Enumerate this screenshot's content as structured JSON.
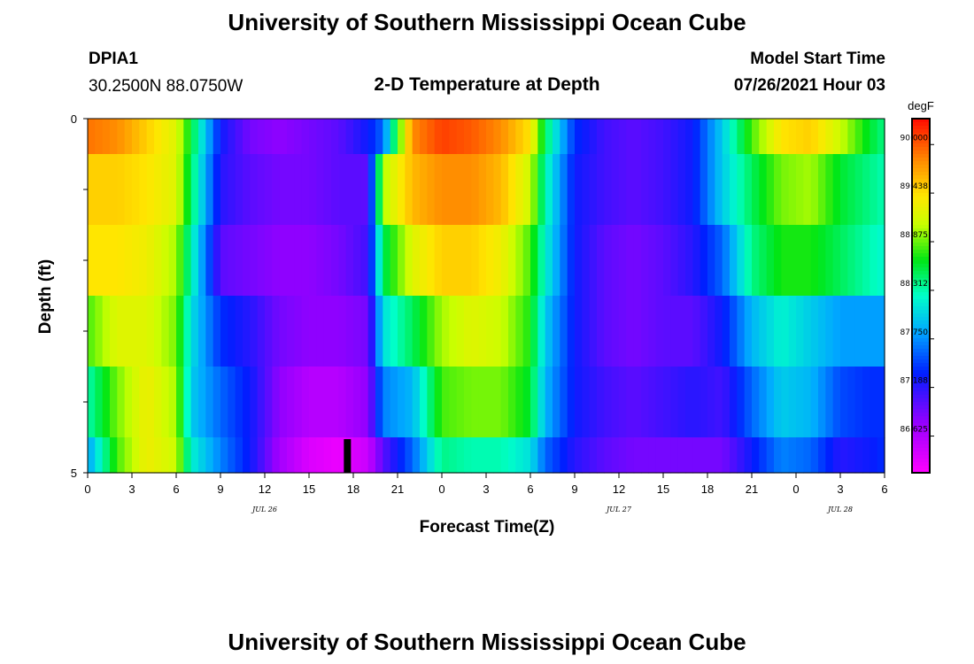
{
  "header": {
    "title_top": "University of Southern Mississippi Ocean Cube",
    "title_bottom": "University of Southern Mississippi Ocean Cube",
    "station_id": "DPIA1",
    "station_coords": "30.2500N  88.0750W",
    "plot_title": "2-D Temperature at Depth",
    "model_start_label": "Model Start Time",
    "model_start_value": "07/26/2021 Hour 03"
  },
  "colors": {
    "marker": "#000000",
    "axis": "#000000"
  },
  "chart_data": {
    "type": "heatmap",
    "title": "2-D Temperature at Depth",
    "xlabel": "Forecast Time(Z)",
    "ylabel": "Depth (ft)",
    "x_unit": "hours since 07/26/2021 00Z",
    "xlim": [
      0,
      54
    ],
    "ylim": [
      0,
      5
    ],
    "x_tick_labels": [
      "0",
      "3",
      "6",
      "9",
      "12",
      "15",
      "18",
      "21",
      "0",
      "3",
      "6",
      "9",
      "12",
      "15",
      "18",
      "21",
      "0",
      "3",
      "6"
    ],
    "x_tick_hours": [
      0,
      3,
      6,
      9,
      12,
      15,
      18,
      21,
      24,
      27,
      30,
      33,
      36,
      39,
      42,
      45,
      48,
      51,
      54
    ],
    "y_tick_labels": [
      "0",
      "5"
    ],
    "y_tick_values": [
      0,
      5
    ],
    "date_labels": [
      {
        "hour": 12,
        "text": "JUL 26"
      },
      {
        "hour": 36,
        "text": "JUL 27"
      },
      {
        "hour": 51,
        "text": "JUL 28"
      }
    ],
    "colorbar": {
      "unit": "degF",
      "min": 86.2,
      "max": 90.3,
      "tick_labels": [
        "90.000",
        "89.438",
        "88.875",
        "88.312",
        "87.750",
        "87.188",
        "86.625"
      ],
      "tick_values": [
        90.0,
        89.438,
        88.875,
        88.312,
        87.75,
        87.188,
        86.625
      ]
    },
    "current_time_marker_hour": 17.6,
    "depth_levels_ft": [
      0.25,
      1.0,
      2.0,
      3.0,
      4.0,
      4.75
    ],
    "depth_bounds_ft": [
      0,
      0.5,
      1.5,
      2.5,
      3.5,
      4.5,
      5
    ],
    "time_keypoints": [
      0,
      2,
      4,
      6,
      7,
      9,
      11,
      13,
      15,
      17,
      19,
      20,
      22,
      24,
      26,
      28,
      30,
      31,
      33,
      35,
      37,
      39,
      41,
      43,
      45,
      47,
      49,
      51,
      53,
      54
    ],
    "temperature_degF": [
      [
        89.9,
        89.8,
        89.5,
        89.2,
        88.6,
        87.3,
        86.9,
        86.8,
        86.9,
        87.0,
        87.3,
        87.6,
        89.8,
        90.1,
        90.0,
        89.8,
        89.4,
        88.5,
        87.4,
        87.1,
        87.0,
        87.1,
        87.3,
        88.0,
        88.8,
        89.4,
        89.5,
        89.1,
        88.6,
        88.4
      ],
      [
        89.5,
        89.5,
        89.4,
        89.2,
        88.5,
        87.2,
        87.0,
        86.9,
        86.9,
        87.0,
        87.0,
        89.0,
        89.6,
        89.8,
        89.8,
        89.6,
        89.1,
        88.3,
        87.3,
        87.1,
        87.0,
        87.1,
        87.3,
        88.0,
        88.5,
        88.9,
        89.0,
        88.6,
        88.4,
        88.3
      ],
      [
        89.4,
        89.4,
        89.3,
        89.0,
        88.3,
        87.0,
        86.9,
        86.8,
        86.8,
        86.9,
        87.1,
        88.5,
        89.2,
        89.5,
        89.5,
        89.3,
        88.8,
        88.2,
        87.3,
        87.0,
        86.9,
        87.0,
        87.2,
        87.6,
        88.4,
        88.7,
        88.7,
        88.5,
        88.3,
        88.2
      ],
      [
        88.8,
        89.2,
        89.2,
        88.9,
        88.1,
        87.4,
        87.2,
        86.9,
        86.8,
        86.8,
        86.9,
        88.1,
        88.5,
        89.0,
        89.2,
        89.1,
        88.7,
        88.0,
        87.3,
        87.0,
        86.9,
        87.0,
        87.0,
        87.3,
        87.9,
        88.2,
        88.0,
        87.8,
        87.8,
        87.8
      ],
      [
        88.3,
        88.9,
        89.3,
        89.0,
        88.0,
        87.6,
        87.3,
        86.8,
        86.6,
        86.6,
        86.8,
        87.7,
        87.9,
        88.8,
        88.9,
        88.9,
        88.6,
        87.9,
        87.3,
        87.1,
        87.0,
        87.1,
        87.2,
        87.1,
        87.6,
        88.0,
        87.9,
        87.5,
        87.4,
        87.4
      ],
      [
        87.8,
        88.8,
        89.3,
        89.1,
        88.2,
        87.7,
        87.3,
        86.7,
        86.4,
        86.3,
        86.5,
        87.0,
        87.6,
        88.4,
        88.3,
        88.3,
        88.1,
        87.6,
        87.2,
        87.0,
        86.9,
        86.9,
        86.9,
        86.9,
        87.3,
        87.7,
        87.6,
        87.2,
        87.3,
        87.4
      ]
    ]
  }
}
